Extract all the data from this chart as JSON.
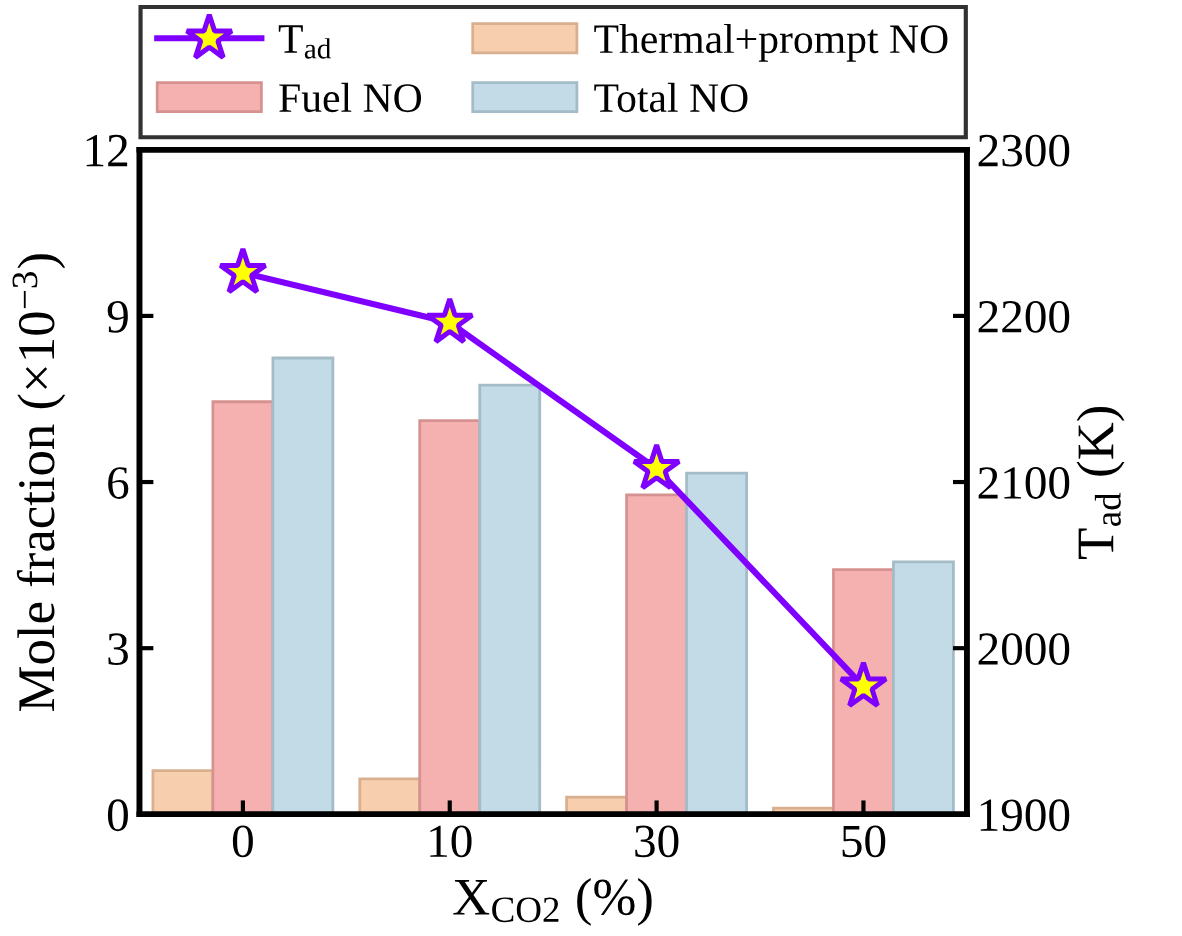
{
  "chart_data": {
    "type": "bar",
    "xlabel": "X$_{CO2}$ (%)",
    "ylabel": "Mole fraction (×10$^{−3}$)",
    "y2label": "T$_{ad}$ (K)",
    "categories": [
      "0",
      "10",
      "30",
      "50"
    ],
    "series": [
      {
        "name": "Thermal+prompt NO",
        "color": "#f7cfae",
        "values": [
          0.79,
          0.64,
          0.31,
          0.11
        ]
      },
      {
        "name": "Fuel NO",
        "color": "#f5b0b0",
        "values": [
          7.45,
          7.11,
          5.77,
          4.42
        ]
      },
      {
        "name": "Total NO",
        "color": "#c3dbe7",
        "values": [
          8.24,
          7.75,
          6.16,
          4.56
        ]
      },
      {
        "name": "T$_{ad}$",
        "type": "line",
        "axis": "y2",
        "color": "#7f00ff",
        "marker": "star",
        "values": [
          2226,
          2196,
          2108,
          1977
        ]
      }
    ],
    "ylim": [
      0,
      12
    ],
    "yticks": [
      0,
      3,
      6,
      9,
      12
    ],
    "y2lim": [
      1900,
      2300
    ],
    "y2ticks": [
      1900,
      2000,
      2100,
      2200,
      2300
    ],
    "legend": "top",
    "grid": false
  }
}
